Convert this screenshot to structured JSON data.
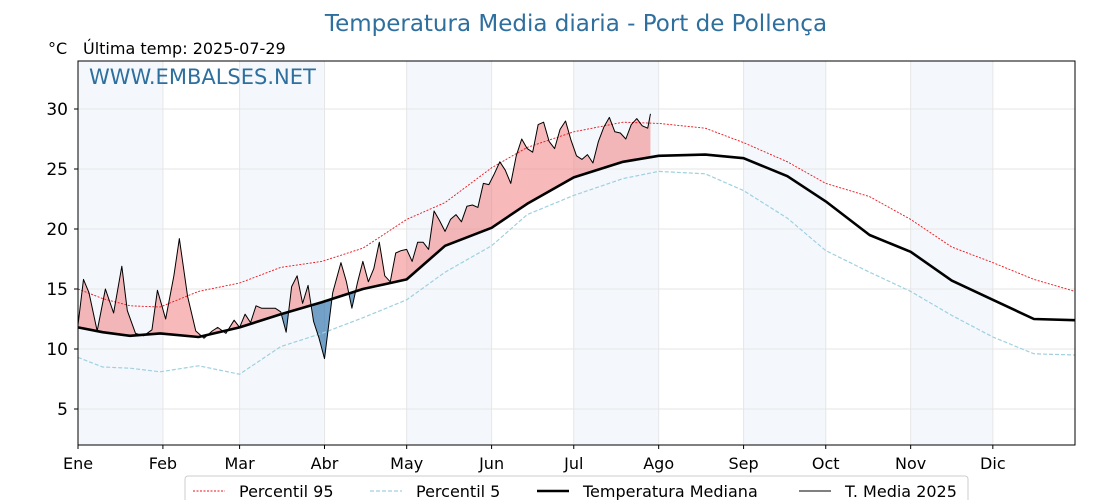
{
  "chart_data": {
    "type": "line",
    "title": "Temperatura Media diaria - Port de Pollença",
    "y_unit": "°C",
    "last_temp_label": "Última temp: 2025-07-29",
    "watermark": "WWW.EMBALSES.NET",
    "ylim": [
      2,
      34
    ],
    "yticks": [
      5,
      10,
      15,
      20,
      25,
      30
    ],
    "months": [
      "Ene",
      "Feb",
      "Mar",
      "Abr",
      "May",
      "Jun",
      "Jul",
      "Ago",
      "Sep",
      "Oct",
      "Nov",
      "Dic"
    ],
    "month_start_day": [
      1,
      32,
      60,
      91,
      121,
      152,
      182,
      213,
      244,
      274,
      305,
      335
    ],
    "days_in_year": 365,
    "grid": true,
    "legend_position": "bottom",
    "colors": {
      "p95": "#e8141c",
      "p5": "#9fd0e0",
      "median": "#000000",
      "year": "#000000",
      "above_fill": "#f08080",
      "below_fill": "#3a7bb0",
      "band": "#dce8f4",
      "title": "#2e6f9e"
    },
    "series": [
      {
        "key": "p95",
        "name": "Percentil 95",
        "x": [
          1,
          10,
          20,
          31,
          45,
          60,
          75,
          90,
          105,
          121,
          135,
          152,
          165,
          182,
          200,
          213,
          230,
          244,
          260,
          274,
          290,
          305,
          320,
          335,
          350,
          365
        ],
        "values": [
          15,
          14.2,
          13.6,
          13.5,
          14.8,
          15.5,
          16.8,
          17.3,
          18.4,
          20.8,
          22.2,
          25.1,
          26.8,
          28.1,
          28.9,
          28.8,
          28.4,
          27.2,
          25.6,
          23.8,
          22.7,
          20.8,
          18.5,
          17.2,
          15.8,
          14.8
        ]
      },
      {
        "key": "p5",
        "name": "Percentil 5",
        "x": [
          1,
          10,
          20,
          31,
          45,
          60,
          75,
          90,
          105,
          121,
          135,
          152,
          165,
          182,
          200,
          213,
          230,
          244,
          260,
          274,
          290,
          305,
          320,
          335,
          350,
          365
        ],
        "values": [
          9.3,
          8.5,
          8.4,
          8.1,
          8.6,
          7.9,
          10.2,
          11.3,
          12.6,
          14.1,
          16.4,
          18.6,
          21.2,
          22.8,
          24.2,
          24.8,
          24.6,
          23.2,
          20.9,
          18.2,
          16.4,
          14.8,
          12.8,
          11.0,
          9.6,
          9.5
        ]
      },
      {
        "key": "median",
        "name": "Temperatura Mediana",
        "x": [
          1,
          10,
          20,
          31,
          45,
          60,
          75,
          90,
          105,
          121,
          135,
          152,
          165,
          182,
          200,
          213,
          230,
          244,
          260,
          274,
          290,
          305,
          320,
          335,
          350,
          365
        ],
        "values": [
          11.8,
          11.4,
          11.1,
          11.3,
          11.0,
          11.8,
          12.9,
          13.9,
          15.0,
          15.8,
          18.6,
          20.1,
          22.1,
          24.3,
          25.6,
          26.1,
          26.2,
          25.9,
          24.4,
          22.3,
          19.5,
          18.1,
          15.7,
          14.1,
          12.5,
          12.4
        ]
      },
      {
        "key": "year",
        "name": "T. Media 2025",
        "x": [
          1,
          3,
          5,
          8,
          11,
          14,
          17,
          19,
          22,
          25,
          28,
          30,
          33,
          36,
          38,
          41,
          44,
          47,
          50,
          52,
          55,
          58,
          60,
          62,
          64,
          66,
          68,
          71,
          73,
          75,
          77,
          79,
          81,
          83,
          85,
          87,
          89,
          91,
          94,
          97,
          99,
          101,
          103,
          105,
          107,
          109,
          111,
          113,
          115,
          117,
          119,
          121,
          123,
          125,
          127,
          129,
          131,
          133,
          135,
          137,
          139,
          141,
          143,
          145,
          147,
          149,
          151,
          153,
          155,
          157,
          159,
          161,
          163,
          165,
          167,
          169,
          171,
          173,
          175,
          177,
          179,
          181,
          183,
          185,
          187,
          189,
          191,
          193,
          195,
          197,
          199,
          201,
          203,
          205,
          207,
          209,
          210
        ],
        "values": [
          12.0,
          15.8,
          14.7,
          11.5,
          15.0,
          13.0,
          16.9,
          13.2,
          11.3,
          11.1,
          11.6,
          14.9,
          12.5,
          16.1,
          19.2,
          14.4,
          11.5,
          10.9,
          11.5,
          11.8,
          11.3,
          12.4,
          11.8,
          12.9,
          12.2,
          13.6,
          13.4,
          13.4,
          13.4,
          13.1,
          11.4,
          15.2,
          16.1,
          13.8,
          15.3,
          12.3,
          10.9,
          9.2,
          14.7,
          17.2,
          15.6,
          13.4,
          15.5,
          17.3,
          15.6,
          16.7,
          18.9,
          16.1,
          15.6,
          18.0,
          18.2,
          18.3,
          17.3,
          18.9,
          18.9,
          18.3,
          21.5,
          20.7,
          19.8,
          20.8,
          21.2,
          20.6,
          21.9,
          22.0,
          21.8,
          23.8,
          23.7,
          24.6,
          25.6,
          24.9,
          23.8,
          26.1,
          27.5,
          26.7,
          26.4,
          28.7,
          28.9,
          27.3,
          26.7,
          28.3,
          29.0,
          27.4,
          26.1,
          25.8,
          26.2,
          25.5,
          27.3,
          28.5,
          29.3,
          28.1,
          28.0,
          27.5,
          28.7,
          29.2,
          28.6,
          28.4,
          29.6
        ]
      }
    ]
  }
}
